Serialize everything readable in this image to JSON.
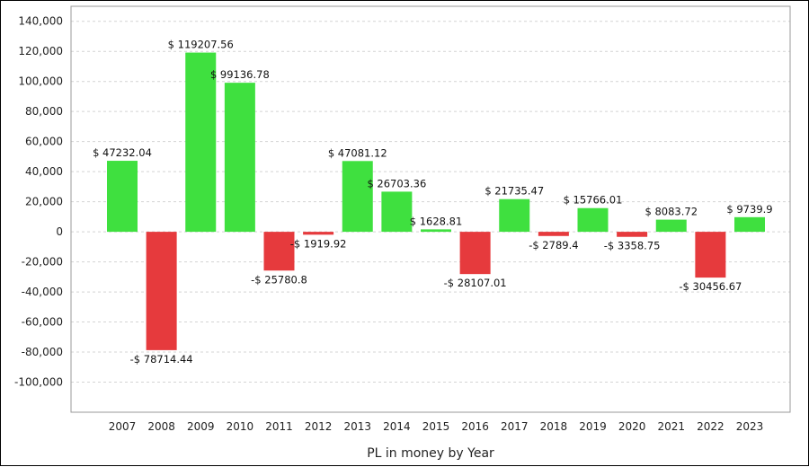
{
  "chart_data": {
    "type": "bar",
    "xlabel": "PL in money by Year",
    "ylabel": "",
    "ylim": [
      -120000,
      150000
    ],
    "yticks": [
      140000,
      120000,
      100000,
      80000,
      60000,
      40000,
      20000,
      0,
      -20000,
      -40000,
      -60000,
      -80000,
      -100000
    ],
    "ytick_labels": [
      "140,000",
      "120,000",
      "100,000",
      "80,000",
      "60,000",
      "40,000",
      "20,000",
      "0",
      "-20,000",
      "-40,000",
      "-60,000",
      "-80,000",
      "-100,000"
    ],
    "grid": "horizontal dashed",
    "categories": [
      "2007",
      "2008",
      "2009",
      "2010",
      "2011",
      "2012",
      "2013",
      "2014",
      "2015",
      "2016",
      "2017",
      "2018",
      "2019",
      "2020",
      "2021",
      "2022",
      "2023"
    ],
    "values": [
      47232.04,
      -78714.44,
      119207.56,
      99136.78,
      -25780.8,
      -1919.92,
      47081.12,
      26703.36,
      1628.81,
      -28107.01,
      21735.47,
      -2789.4,
      15766.01,
      -3358.75,
      8083.72,
      -30456.67,
      9739.9
    ],
    "data_labels": [
      "$ 47232.04",
      "-$ 78714.44",
      "$ 119207.56",
      "$ 99136.78",
      "-$ 25780.8",
      "-$ 1919.92",
      "$ 47081.12",
      "$ 26703.36",
      "$ 1628.81",
      "-$ 28107.01",
      "$ 21735.47",
      "-$ 2789.4",
      "$ 15766.01",
      "-$ 3358.75",
      "$ 8083.72",
      "-$ 30456.67",
      "$ 9739.9"
    ],
    "colors": {
      "positive": "#3fe03f",
      "negative": "#e63a3d",
      "grid": "#d4d4d4",
      "axis": "#9a9a9a"
    }
  }
}
